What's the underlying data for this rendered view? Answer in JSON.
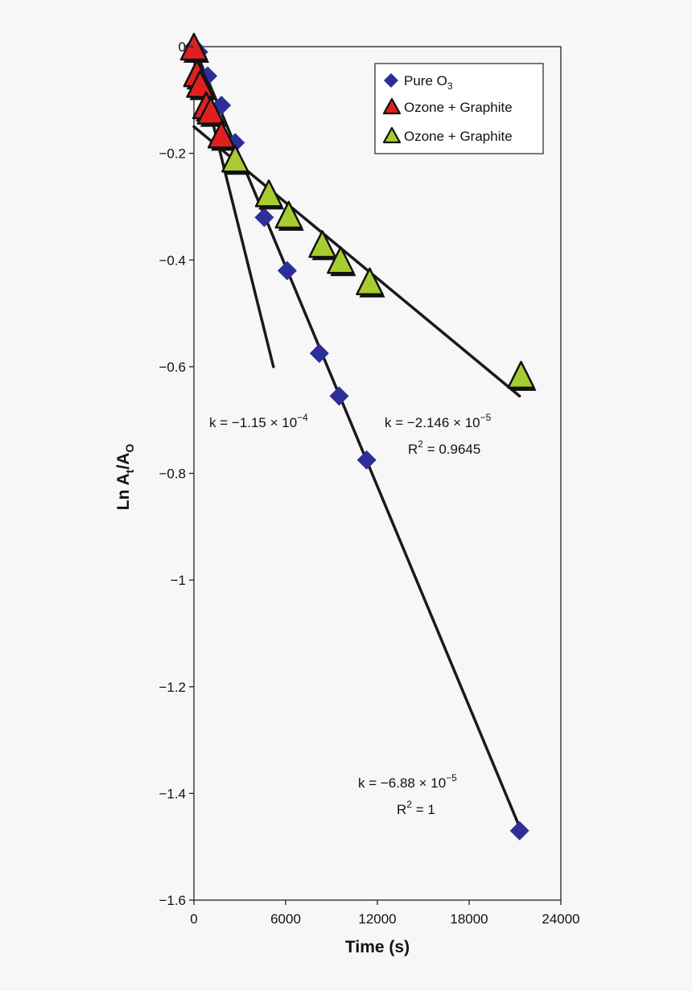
{
  "chart_data": {
    "type": "scatter",
    "xlabel": "Time (s)",
    "ylabel_main": "Ln A",
    "ylabel_sub1": "t",
    "ylabel_mid": "/A",
    "ylabel_sub2": "O",
    "xlim": [
      0,
      24000
    ],
    "ylim": [
      -1.6,
      0
    ],
    "xticks": [
      0,
      6000,
      12000,
      18000,
      24000
    ],
    "yticks": [
      0,
      -0.2,
      -0.4,
      -0.6,
      -0.8,
      -1,
      -1.2,
      -1.4,
      -1.6
    ],
    "xtick_labels": [
      "0",
      "6000",
      "12000",
      "18000",
      "24000"
    ],
    "ytick_labels": [
      "0",
      "−0.2",
      "−0.4",
      "−0.6",
      "−0.8",
      "−1",
      "−1.2",
      "−1.4",
      "−1.6"
    ],
    "grid": false,
    "legend_position": "top-right",
    "series": [
      {
        "name": "Pure O3",
        "legend_main": "Pure O",
        "legend_sub": "3",
        "marker": "diamond",
        "color": "#2e2e9a",
        "x": [
          0,
          300,
          900,
          1800,
          2700,
          4600,
          6100,
          8200,
          9500,
          11300,
          21300
        ],
        "y": [
          0,
          -0.01,
          -0.055,
          -0.11,
          -0.18,
          -0.32,
          -0.42,
          -0.575,
          -0.655,
          -0.775,
          -1.47
        ]
      },
      {
        "name": "Ozone + Graphite",
        "legend_main": "Ozone + Graphite",
        "marker": "triangle",
        "color": "#e02020",
        "x": [
          0,
          200,
          400,
          800,
          1100,
          1800
        ],
        "y": [
          0,
          -0.05,
          -0.07,
          -0.11,
          -0.12,
          -0.165
        ]
      },
      {
        "name": "Ozone + Graphite",
        "legend_main": "Ozone + Graphite",
        "marker": "triangle",
        "color": "#a6cc30",
        "x": [
          2700,
          4900,
          6200,
          8400,
          9600,
          11500,
          21400
        ],
        "y": [
          -0.21,
          -0.275,
          -0.315,
          -0.37,
          -0.4,
          -0.44,
          -0.615
        ]
      }
    ],
    "fit_lines": [
      {
        "x": [
          0,
          21400
        ],
        "y": [
          0,
          -1.47
        ]
      },
      {
        "x": [
          0,
          5200
        ],
        "y": [
          0,
          -0.6
        ]
      },
      {
        "x": [
          0,
          21300
        ],
        "y": [
          -0.15,
          -0.655
        ]
      }
    ],
    "annotations": {
      "a1_k": "k = −1.15 × 10",
      "a1_exp": "−4",
      "a2_k": "k = −2.146 × 10",
      "a2_exp": "−5",
      "a2_r": "R",
      "a2_r_sup": "2",
      "a2_r_val": " = 0.9645",
      "a3_k": "k = −6.88 × 10",
      "a3_exp": "−5",
      "a3_r": "R",
      "a3_r_sup": "2",
      "a3_r_val": " = 1"
    }
  }
}
